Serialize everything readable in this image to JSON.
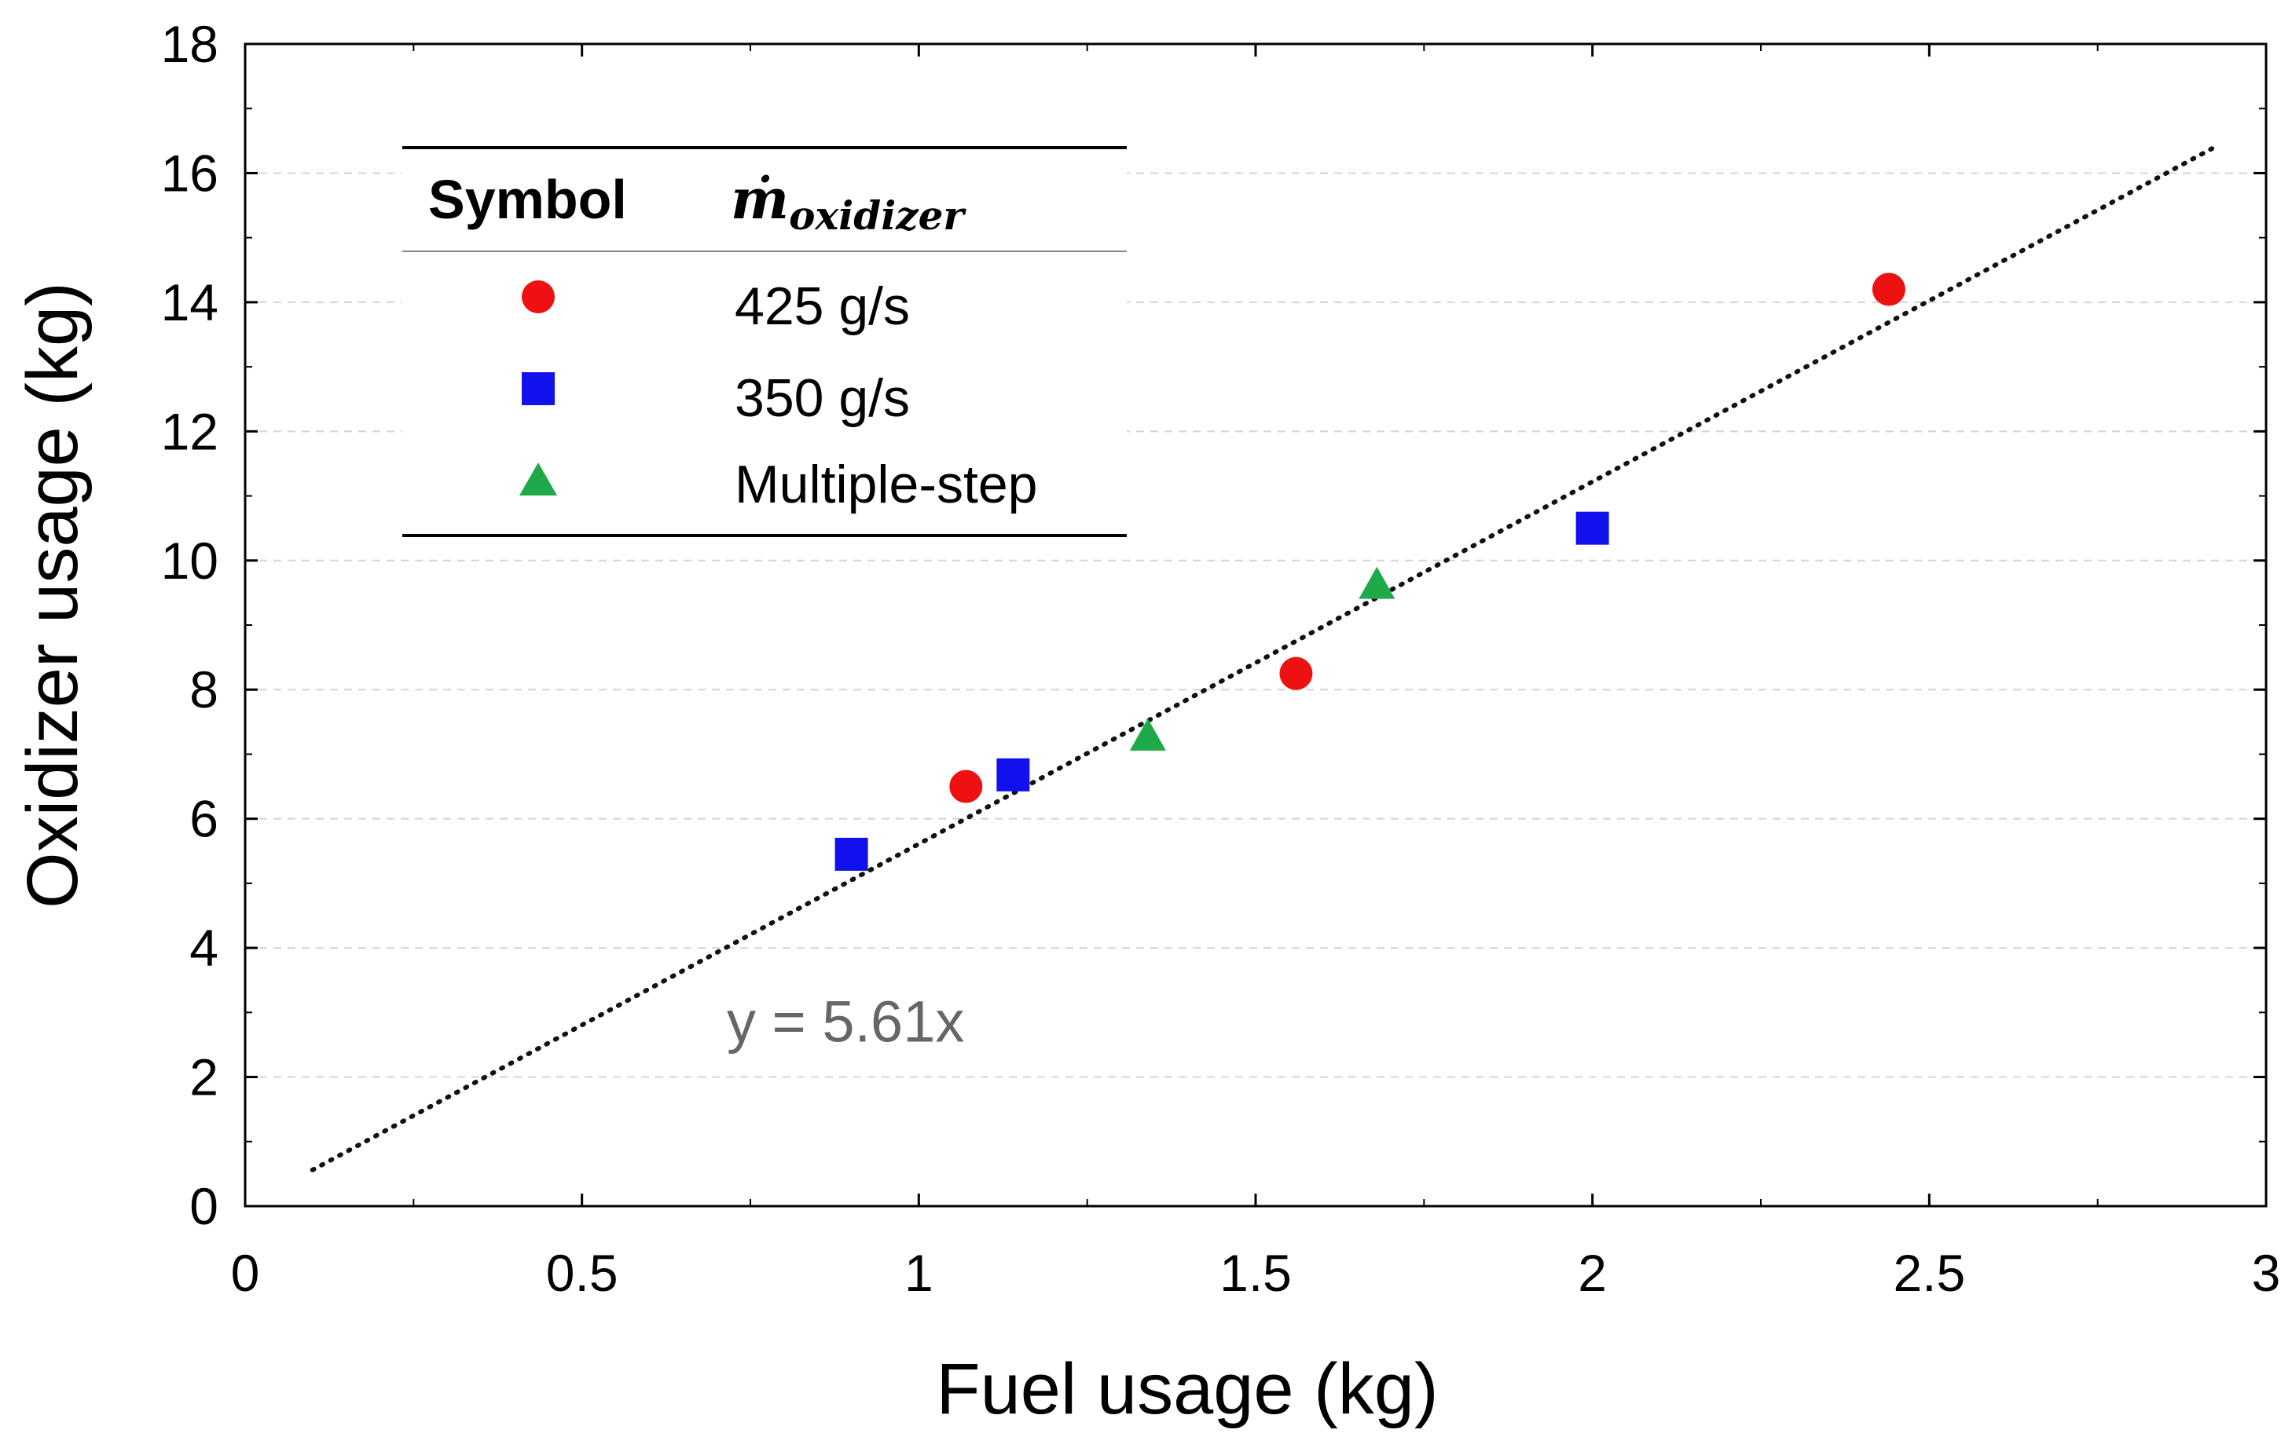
{
  "chart_data": {
    "type": "scatter",
    "title": "",
    "xlabel": "Fuel usage (kg)",
    "ylabel": "Oxidizer usage (kg)",
    "xlim": [
      0,
      3
    ],
    "ylim": [
      0,
      18
    ],
    "x_ticks": [
      0,
      0.5,
      1,
      1.5,
      2,
      2.5,
      3
    ],
    "x_tick_labels": [
      "0",
      "0.5",
      "1",
      "1.5",
      "2",
      "2.5",
      "3"
    ],
    "y_ticks": [
      0,
      2,
      4,
      6,
      8,
      10,
      12,
      14,
      16,
      18
    ],
    "y_tick_labels": [
      "0",
      "2",
      "4",
      "6",
      "8",
      "10",
      "12",
      "14",
      "16",
      "18"
    ],
    "grid": "horizontal-dashed",
    "legend": {
      "position": "top-left",
      "header_symbol": "Symbol",
      "header_var": "ṁ",
      "header_var_sub": "oxidizer"
    },
    "series": [
      {
        "name": "425 g/s",
        "marker": "circle",
        "color": "#ee1111",
        "x": [
          1.07,
          1.56,
          2.44
        ],
        "y": [
          6.5,
          8.25,
          14.2
        ]
      },
      {
        "name": "350 g/s",
        "marker": "square",
        "color": "#1111ee",
        "x": [
          0.9,
          1.14,
          2.0
        ],
        "y": [
          5.45,
          6.68,
          10.5
        ]
      },
      {
        "name": "Multiple-step",
        "marker": "triangle",
        "color": "#1faa4a",
        "x": [
          1.34,
          1.68
        ],
        "y": [
          7.25,
          9.6
        ]
      }
    ],
    "fit": {
      "label": "y = 5.61x",
      "slope": 5.61,
      "x_range": [
        0.1,
        2.93
      ],
      "style": "dotted",
      "color": "#111111"
    }
  }
}
